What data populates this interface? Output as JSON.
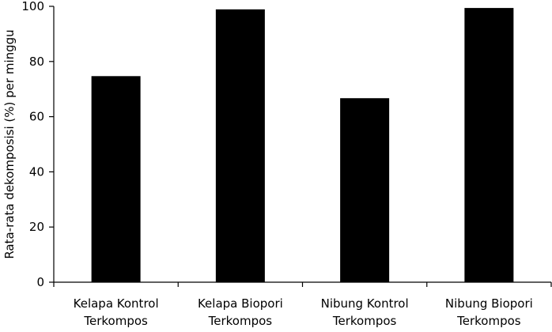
{
  "chart_data": {
    "type": "bar",
    "title": "",
    "xlabel": "",
    "ylabel": "Rata-rata dekomposisi (%) per minggu",
    "ylim": [
      0,
      100
    ],
    "yticks": [
      0,
      20,
      40,
      60,
      80,
      100
    ],
    "grid": false,
    "categories": [
      [
        "Kelapa Kontrol",
        "Terkompos"
      ],
      [
        "Kelapa Biopori",
        "Terkompos"
      ],
      [
        "Nibung Kontrol",
        "Terkompos"
      ],
      [
        "Nibung Biopori",
        "Terkompos"
      ]
    ],
    "values": [
      74.7,
      98.9,
      66.7,
      99.4
    ],
    "bar_color": "#000000"
  }
}
